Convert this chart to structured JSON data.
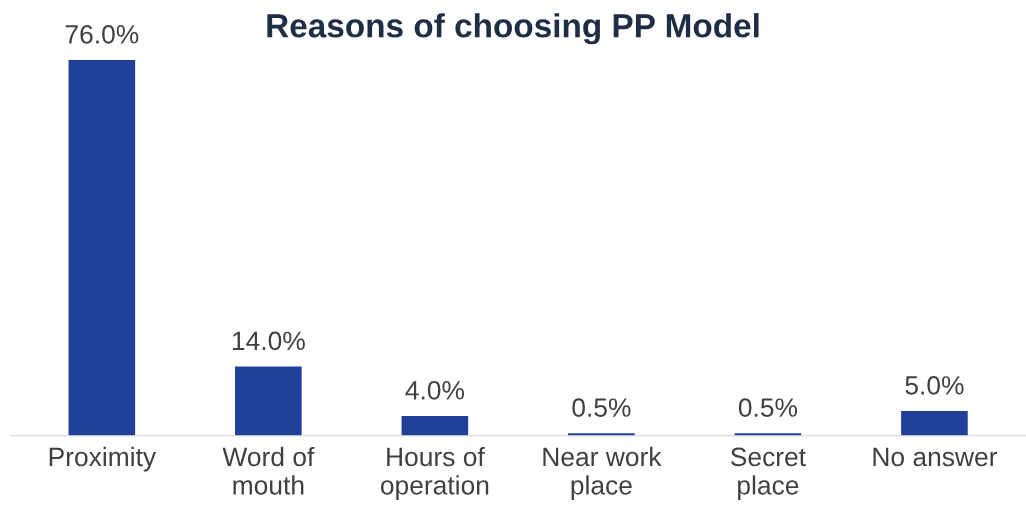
{
  "chart_data": {
    "type": "bar",
    "title": "Reasons of choosing PP Model",
    "categories": [
      "Proximity",
      "Word of\nmouth",
      "Hours of\noperation",
      "Near work\nplace",
      "Secret\nplace",
      "No answer"
    ],
    "values": [
      76.0,
      14.0,
      4.0,
      0.5,
      0.5,
      5.0
    ],
    "value_labels": [
      "76.0%",
      "14.0%",
      "4.0%",
      "0.5%",
      "0.5%",
      "5.0%"
    ],
    "color": "#21409a",
    "grid": false,
    "legend": false
  }
}
